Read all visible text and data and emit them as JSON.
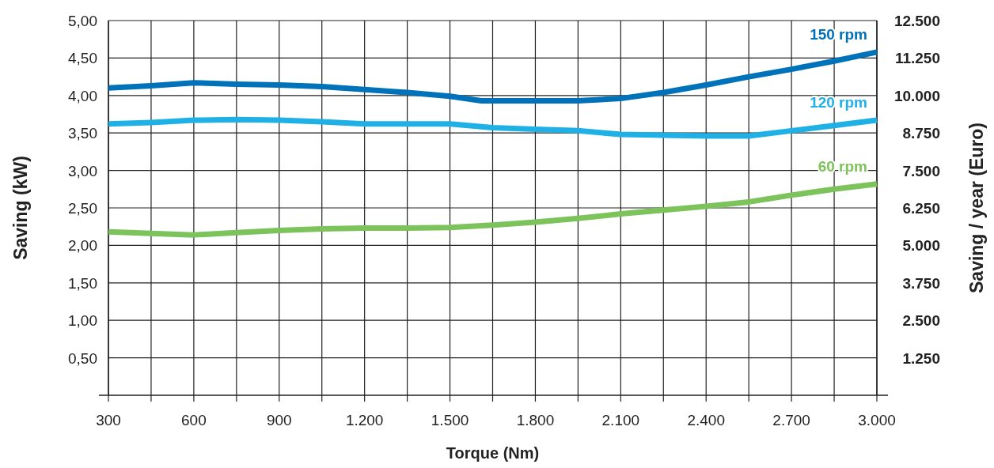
{
  "chart_data": {
    "type": "line",
    "xlabel": "Torque (Nm)",
    "ylabel": "Saving (kW)",
    "y2label": "Saving / year (Euro)",
    "xlim": [
      300,
      3000
    ],
    "xticks": [
      300,
      {
        "value": 450,
        "label": null
      },
      600,
      {
        "value": 750,
        "label": null
      },
      900,
      {
        "value": 1050,
        "label": null
      },
      {
        "value": 1200,
        "label": "1.200"
      },
      {
        "value": 1350,
        "label": null
      },
      {
        "value": 1500,
        "label": "1.500"
      },
      {
        "value": 1650,
        "label": null
      },
      {
        "value": 1800,
        "label": "1.800"
      },
      {
        "value": 1950,
        "label": null
      },
      {
        "value": 2100,
        "label": "2.100"
      },
      {
        "value": 2250,
        "label": null
      },
      {
        "value": 2400,
        "label": "2.400"
      },
      {
        "value": 2550,
        "label": null
      },
      {
        "value": 2700,
        "label": "2.700"
      },
      {
        "value": 2850,
        "label": null
      },
      {
        "value": 3000,
        "label": "3.000"
      }
    ],
    "ylim": [
      0,
      5
    ],
    "yticks": [
      {
        "value": 0.5,
        "label": "0,50"
      },
      {
        "value": 1,
        "label": "1,00"
      },
      {
        "value": 1.5,
        "label": "1,50"
      },
      {
        "value": 2,
        "label": "2,00"
      },
      {
        "value": 2.5,
        "label": "2,50"
      },
      {
        "value": 3,
        "label": "3,00"
      },
      {
        "value": 3.5,
        "label": "3,50"
      },
      {
        "value": 4,
        "label": "4,00"
      },
      {
        "value": 4.5,
        "label": "4,50"
      },
      {
        "value": 5,
        "label": "5,00"
      }
    ],
    "y2lim": [
      0,
      12500
    ],
    "y2ticks": [
      {
        "value": 1250,
        "label": "1.250"
      },
      {
        "value": 2500,
        "label": "2.500"
      },
      {
        "value": 3750,
        "label": "3.750"
      },
      {
        "value": 5000,
        "label": "5.000"
      },
      {
        "value": 6250,
        "label": "6.250"
      },
      {
        "value": 7500,
        "label": "7.500"
      },
      {
        "value": 8750,
        "label": "8.750"
      },
      {
        "value": 10000,
        "label": "10.000"
      },
      {
        "value": 11250,
        "label": "11.250"
      },
      {
        "value": 12500,
        "label": "12.500"
      }
    ],
    "grid": true,
    "line_style": "solid",
    "marker": "none",
    "series": [
      {
        "name": "150 rpm",
        "color": "#0072b9",
        "x": [
          300,
          450,
          600,
          750,
          900,
          1050,
          1200,
          1350,
          1500,
          1610,
          1800,
          1950,
          2100,
          2250,
          2400,
          2550,
          2700,
          2850,
          3000
        ],
        "values": [
          4.1,
          4.13,
          4.17,
          4.15,
          4.14,
          4.12,
          4.08,
          4.04,
          3.99,
          3.93,
          3.93,
          3.93,
          3.96,
          4.04,
          4.14,
          4.25,
          4.35,
          4.46,
          4.58
        ]
      },
      {
        "name": "120 rpm",
        "color": "#1fb1e6",
        "x": [
          300,
          450,
          600,
          750,
          900,
          1050,
          1200,
          1350,
          1500,
          1650,
          1800,
          1950,
          2100,
          2250,
          2400,
          2550,
          2700,
          2850,
          3000
        ],
        "values": [
          3.62,
          3.64,
          3.67,
          3.68,
          3.67,
          3.65,
          3.62,
          3.62,
          3.62,
          3.57,
          3.55,
          3.53,
          3.48,
          3.47,
          3.46,
          3.46,
          3.53,
          3.6,
          3.67
        ]
      },
      {
        "name": "60 rpm",
        "color": "#7dc35b",
        "x": [
          300,
          450,
          600,
          750,
          900,
          1050,
          1200,
          1350,
          1500,
          1650,
          1800,
          1950,
          2100,
          2250,
          2400,
          2550,
          2700,
          2850,
          3000
        ],
        "values": [
          2.18,
          2.16,
          2.14,
          2.17,
          2.2,
          2.22,
          2.23,
          2.23,
          2.24,
          2.27,
          2.31,
          2.36,
          2.42,
          2.47,
          2.52,
          2.58,
          2.67,
          2.75,
          2.82
        ]
      }
    ]
  }
}
